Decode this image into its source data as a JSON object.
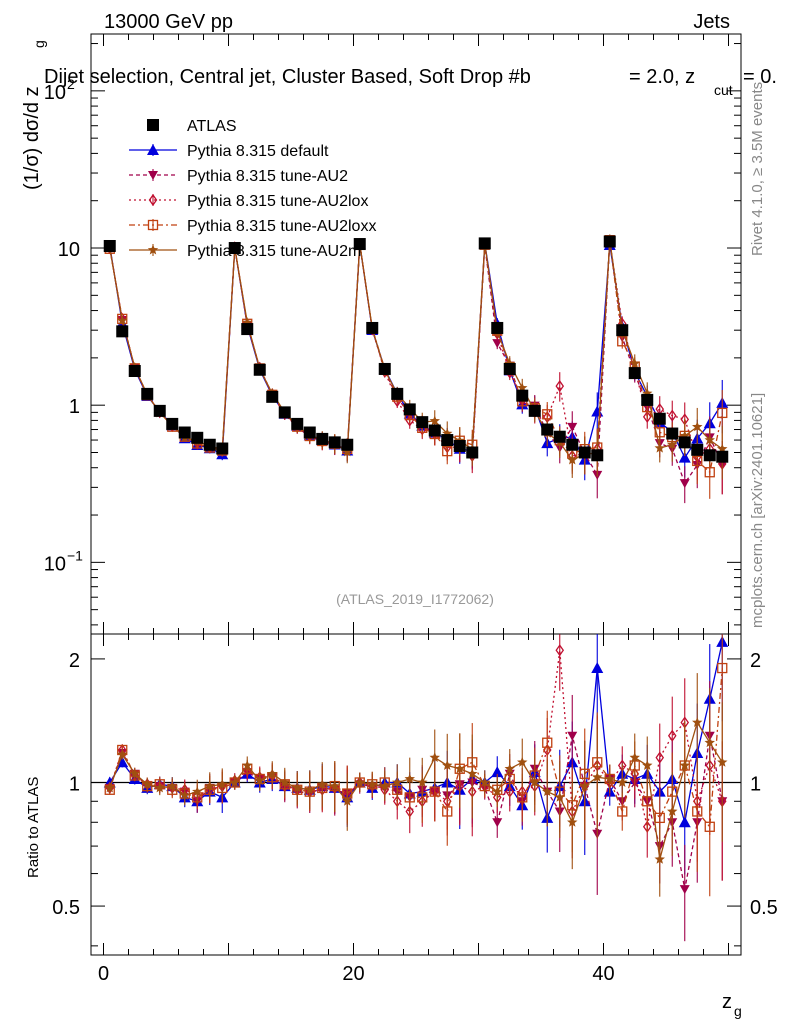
{
  "header": {
    "energy": "13000 GeV pp",
    "category": "Jets",
    "selection": "Dijet selection, Central jet, Cluster Based, Soft Drop #b",
    "eta_part": "= 2.0, z",
    "cut_sub": "cut",
    "cut_val": "= 0."
  },
  "side": {
    "rivet": "Rivet 4.1.0, ≥ 3.5M events",
    "mcplots": "mcplots.cern.ch [arXiv:2401.10621]"
  },
  "analysis_id": "(ATLAS_2019_I1772062)",
  "axes": {
    "ylabel_main": "(1/σ) dσ/d z",
    "ylabel_main_sub": "g",
    "ylabel_ratio": "Ratio to ATLAS",
    "xlabel": "z",
    "xlabel_sub": "g",
    "main_ticks": [
      {
        "label": "10",
        "sup": "2",
        "value": 100
      },
      {
        "label": "10",
        "sup": "",
        "value": 10
      },
      {
        "label": "1",
        "sup": "",
        "value": 1
      },
      {
        "label": "10",
        "sup": "−1",
        "value": 0.1
      }
    ],
    "ratio_ticks": [
      {
        "label": "2",
        "value": 2
      },
      {
        "label": "1",
        "value": 1
      },
      {
        "label": "0.5",
        "value": 0.5
      }
    ],
    "x_ticks": [
      {
        "label": "0",
        "value": 0
      },
      {
        "label": "20",
        "value": 20
      },
      {
        "label": "40",
        "value": 40
      }
    ]
  },
  "legend": [
    {
      "label": "ATLAS",
      "color": "#000000",
      "marker": "square"
    },
    {
      "label": "Pythia 8.315 default",
      "color": "#0000dd",
      "marker": "triangle"
    },
    {
      "label": "Pythia 8.315 tune-AU2",
      "color": "#a0004a",
      "marker": "triangle-down"
    },
    {
      "label": "Pythia 8.315 tune-AU2lox",
      "color": "#c01030",
      "marker": "diamond"
    },
    {
      "label": "Pythia 8.315 tune-AU2loxx",
      "color": "#c04010",
      "marker": "open-square"
    },
    {
      "label": "Pythia 8.315 tune-AU2m",
      "color": "#a05010",
      "marker": "star"
    }
  ],
  "chart_data": {
    "type": "scatter",
    "title": "Dijet selection, Central jet, Cluster Based, Soft Drop",
    "xlabel": "z_g",
    "ylabel": "(1/σ) dσ/d z_g",
    "ratio_ylabel": "Ratio to ATLAS",
    "xlim": [
      -1,
      51
    ],
    "ylim": [
      0.035,
      230
    ],
    "yscale": "log",
    "ratio_ylim": [
      0.38,
      2.3
    ],
    "x": [
      0.5,
      1.5,
      2.5,
      3.5,
      4.5,
      5.5,
      6.5,
      7.5,
      8.5,
      9.5,
      10.5,
      11.5,
      12.5,
      13.5,
      14.5,
      15.5,
      16.5,
      17.5,
      18.5,
      19.5,
      20.5,
      21.5,
      22.5,
      23.5,
      24.5,
      25.5,
      26.5,
      27.5,
      28.5,
      29.5,
      30.5,
      31.5,
      32.5,
      33.5,
      34.5,
      35.5,
      36.5,
      37.5,
      38.5,
      39.5,
      40.5,
      41.5,
      42.5,
      43.5,
      44.5,
      45.5,
      46.5,
      47.5,
      48.5,
      49.5
    ],
    "reference": {
      "name": "ATLAS",
      "values": [
        10.3,
        2.95,
        1.65,
        1.18,
        0.92,
        0.76,
        0.67,
        0.62,
        0.56,
        0.53,
        10.0,
        3.05,
        1.68,
        1.13,
        0.9,
        0.76,
        0.67,
        0.61,
        0.58,
        0.56,
        10.6,
        3.1,
        1.7,
        1.18,
        0.94,
        0.78,
        0.69,
        0.6,
        0.55,
        0.5,
        10.7,
        3.1,
        1.7,
        1.15,
        0.92,
        0.7,
        0.63,
        0.56,
        0.5,
        0.48,
        11.0,
        3.0,
        1.6,
        1.08,
        0.82,
        0.66,
        0.58,
        0.52,
        0.48,
        0.47
      ]
    },
    "series": [
      {
        "name": "Pythia 8.315 default",
        "ratio": [
          1.0,
          1.12,
          1.02,
          0.97,
          0.99,
          0.98,
          0.92,
          0.9,
          0.95,
          0.92,
          1.0,
          1.05,
          1.0,
          1.02,
          0.98,
          0.97,
          0.96,
          0.98,
          0.97,
          0.92,
          1.0,
          0.97,
          1.0,
          1.0,
          0.94,
          0.95,
          0.97,
          1.0,
          0.96,
          1.02,
          1.0,
          1.06,
          0.98,
          0.88,
          1.06,
          0.82,
          0.98,
          1.12,
          0.9,
          1.9,
          0.95,
          1.05,
          1.02,
          1.05,
          0.95,
          1.02,
          0.8,
          1.18,
          1.6,
          2.2
        ]
      },
      {
        "name": "Pythia 8.315 tune-AU2",
        "ratio": [
          0.97,
          1.18,
          1.05,
          0.98,
          0.98,
          0.97,
          0.95,
          0.9,
          0.97,
          0.97,
          1.0,
          1.06,
          1.02,
          1.03,
          0.97,
          0.95,
          0.94,
          0.97,
          0.96,
          0.94,
          0.99,
          0.98,
          0.97,
          0.95,
          0.92,
          0.96,
          0.95,
          0.93,
          0.99,
          1.0,
          0.97,
          0.8,
          1.05,
          0.9,
          1.08,
          0.95,
          0.85,
          1.3,
          0.98,
          0.75,
          1.02,
          0.9,
          1.0,
          0.9,
          0.7,
          0.8,
          0.55,
          0.8,
          1.3,
          0.9
        ]
      },
      {
        "name": "Pythia 8.315 tune-AU2lox",
        "ratio": [
          0.97,
          1.2,
          1.04,
          0.99,
          0.98,
          0.97,
          0.96,
          0.93,
          0.96,
          0.98,
          1.01,
          1.07,
          1.03,
          1.04,
          0.98,
          0.96,
          0.95,
          0.96,
          0.97,
          0.93,
          1.0,
          0.98,
          0.96,
          0.9,
          0.85,
          0.9,
          0.95,
          0.9,
          0.98,
          0.95,
          0.98,
          0.92,
          0.95,
          0.95,
          0.98,
          1.2,
          2.1,
          0.85,
          0.98,
          1.1,
          1.0,
          1.1,
          1.05,
          0.78,
          1.15,
          1.3,
          1.4,
          0.9,
          1.1,
          0.9
        ]
      },
      {
        "name": "Pythia 8.315 tune-AU2loxx",
        "ratio": [
          0.96,
          1.2,
          1.04,
          0.98,
          0.99,
          0.96,
          0.94,
          0.92,
          0.96,
          0.97,
          1.0,
          1.08,
          1.02,
          1.03,
          0.99,
          0.96,
          0.95,
          0.97,
          0.98,
          0.94,
          1.0,
          0.99,
          1.0,
          0.96,
          0.92,
          0.92,
          0.95,
          0.85,
          1.08,
          1.12,
          0.98,
          0.96,
          1.02,
          0.92,
          1.04,
          1.25,
          0.95,
          0.88,
          1.05,
          1.12,
          1.02,
          0.85,
          1.1,
          0.9,
          0.82,
          0.95,
          1.1,
          0.85,
          0.78,
          1.9
        ]
      },
      {
        "name": "Pythia 8.315 tune-AU2m",
        "ratio": [
          0.97,
          1.17,
          1.05,
          0.99,
          0.97,
          0.98,
          0.93,
          0.95,
          0.98,
          0.99,
          1.0,
          1.1,
          1.01,
          1.05,
          1.0,
          0.97,
          0.96,
          0.99,
          0.98,
          0.9,
          1.0,
          0.99,
          0.98,
          1.0,
          1.02,
          1.0,
          1.15,
          1.1,
          1.08,
          1.05,
          1.0,
          0.95,
          1.08,
          1.12,
          1.0,
          0.95,
          0.92,
          0.8,
          0.98,
          1.03,
          1.02,
          1.0,
          1.15,
          1.1,
          0.65,
          0.85,
          1.1,
          1.4,
          1.25,
          1.12
        ]
      }
    ]
  }
}
